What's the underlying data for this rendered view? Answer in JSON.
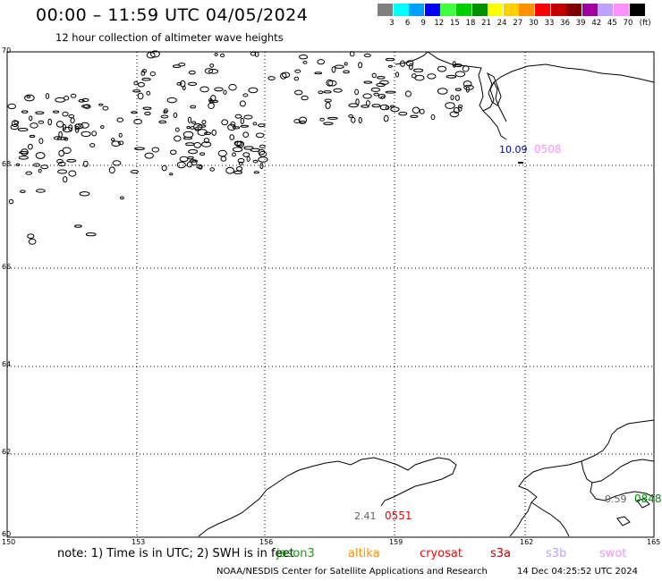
{
  "header": {
    "title": "00:00 – 11:59 UTC 04/05/2024",
    "subtitle": "12 hour collection of altimeter wave heights"
  },
  "legend": {
    "unit": "(ft)",
    "items": [
      {
        "label": "3",
        "color": "#808080"
      },
      {
        "label": "6",
        "color": "#00ffff"
      },
      {
        "label": "9",
        "color": "#00a0ff"
      },
      {
        "label": "12",
        "color": "#0000ff"
      },
      {
        "label": "15",
        "color": "#40ff40"
      },
      {
        "label": "18",
        "color": "#00d000"
      },
      {
        "label": "21",
        "color": "#009000"
      },
      {
        "label": "24",
        "color": "#ffff00"
      },
      {
        "label": "27",
        "color": "#ffd000"
      },
      {
        "label": "30",
        "color": "#ff9000"
      },
      {
        "label": "33",
        "color": "#ff0000"
      },
      {
        "label": "36",
        "color": "#c00000"
      },
      {
        "label": "39",
        "color": "#800000"
      },
      {
        "label": "42",
        "color": "#a000a0"
      },
      {
        "label": "45",
        "color": "#c0a0ff"
      },
      {
        "label": "70",
        "color": "#ff90ff"
      },
      {
        "label": "",
        "color": "#000000"
      }
    ]
  },
  "axes": {
    "latitudes": [
      "70",
      "68",
      "66",
      "64",
      "62",
      "60"
    ],
    "longitudes": [
      "150",
      "153",
      "156",
      "159",
      "162",
      "165"
    ]
  },
  "annotations": [
    {
      "swh": "10.09",
      "swh_color": "#0000b0",
      "time": "0508",
      "time_color": "#ff90ff"
    },
    {
      "swh": "2.41",
      "swh_color": "#606060",
      "time": "0551",
      "time_color": "#ff0000"
    },
    {
      "swh": "0.59",
      "swh_color": "#606060",
      "time": "0848",
      "time_color": "#009000"
    }
  ],
  "footer": {
    "note": "note: 1) Time is in UTC; 2) SWH is in feet",
    "satellites": [
      {
        "name": "jason3",
        "color": "#009000"
      },
      {
        "name": "altika",
        "color": "#ff9000"
      },
      {
        "name": "cryosat",
        "color": "#ff0000"
      },
      {
        "name": "s3a",
        "color": "#c00000"
      },
      {
        "name": "s3b",
        "color": "#c0a0ff"
      },
      {
        "name": "swot",
        "color": "#ff90ff"
      }
    ],
    "credit": "NOAA/NESDIS Center for Satellite Applications and Research",
    "stamp": "14 Dec 04:25:52 UTC 2024"
  }
}
